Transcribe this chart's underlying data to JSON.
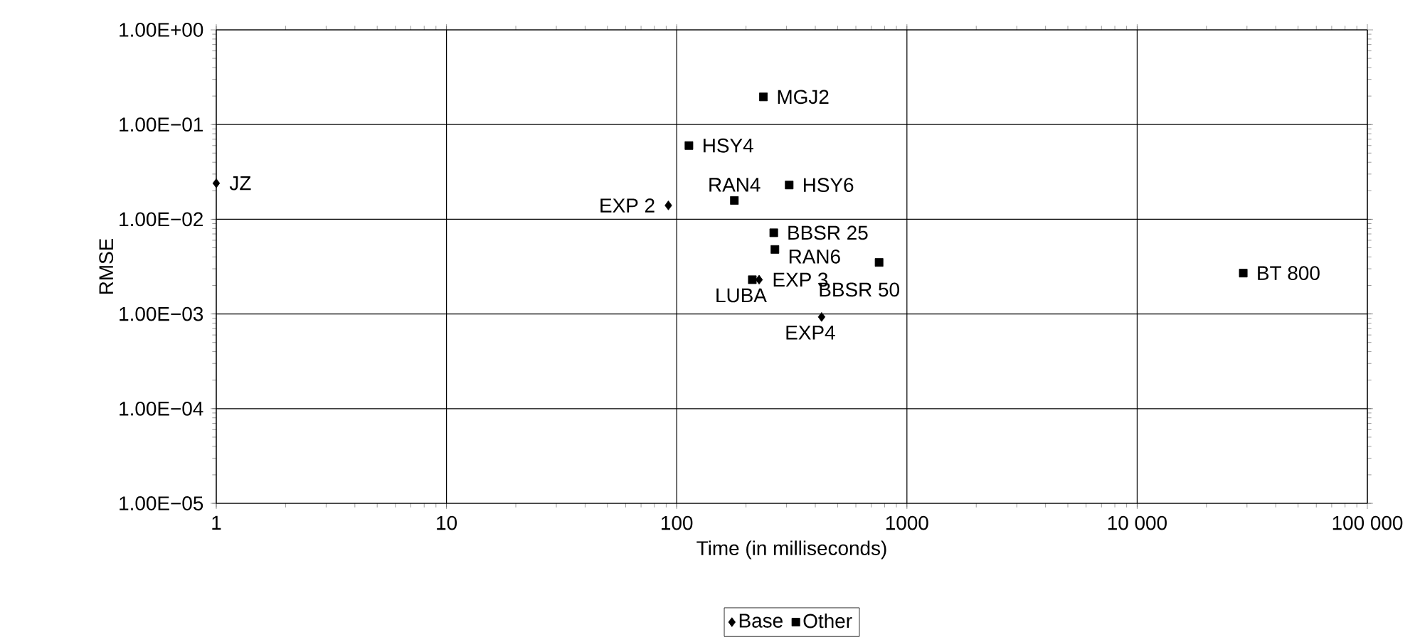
{
  "chart_data": {
    "type": "scatter",
    "xlabel": "Time (in milliseconds)",
    "ylabel": "RMSE",
    "log": "xy",
    "grid": true,
    "legend": "bottom",
    "xlim": [
      1,
      100000
    ],
    "ylim": [
      1e-05,
      1
    ],
    "xticks": [
      1,
      10,
      100,
      1000,
      {
        "value": 10000,
        "label": "10 000"
      },
      {
        "value": 100000,
        "label": "100 000"
      }
    ],
    "yticks": [
      {
        "value": 1e-05,
        "label": "1.00E−05"
      },
      {
        "value": 0.0001,
        "label": "1.00E−04"
      },
      {
        "value": 0.001,
        "label": "1.00E−03"
      },
      {
        "value": 0.01,
        "label": "1.00E−02"
      },
      {
        "value": 0.1,
        "label": "1.00E−01"
      },
      {
        "value": 1,
        "label": "1.00E+00"
      }
    ],
    "series": [
      {
        "name": "Base",
        "color": "#000000",
        "marker": "diamond",
        "x": [
          1,
          92,
          228,
          426
        ],
        "values": [
          0.024,
          0.014,
          0.0023,
          0.00093
        ]
      },
      {
        "name": "Other",
        "color": "#000000",
        "marker": "square",
        "x": [
          238,
          113,
          308,
          178,
          264,
          267,
          757,
          28900,
          213
        ],
        "values": [
          0.196,
          0.06,
          0.023,
          0.0158,
          0.0072,
          0.0048,
          0.0035,
          0.0027,
          0.0023
        ]
      }
    ],
    "annotations": [
      {
        "text": "JZ",
        "x": 1,
        "y": 0.024
      },
      {
        "text": "MGJ2",
        "x": 238,
        "y": 0.196
      },
      {
        "text": "HSY4",
        "x": 113,
        "y": 0.06
      },
      {
        "text": "HSY6",
        "x": 308,
        "y": 0.023
      },
      {
        "text": "RAN4",
        "x": 178,
        "y": 0.0158
      },
      {
        "text": "BBSR 25",
        "x": 264,
        "y": 0.0072
      },
      {
        "text": "RAN6",
        "x": 267,
        "y": 0.0048
      },
      {
        "text": "BBSR 50",
        "x": 757,
        "y": 0.0035
      },
      {
        "text": "BT 800",
        "x": 28900,
        "y": 0.0027
      },
      {
        "text": "LUBA",
        "x": 213,
        "y": 0.0023
      },
      {
        "text": "EXP 2",
        "x": 92,
        "y": 0.014
      },
      {
        "text": "EXP 3",
        "x": 228,
        "y": 0.0023
      },
      {
        "text": "EXP4",
        "x": 426,
        "y": 0.00093
      }
    ]
  }
}
